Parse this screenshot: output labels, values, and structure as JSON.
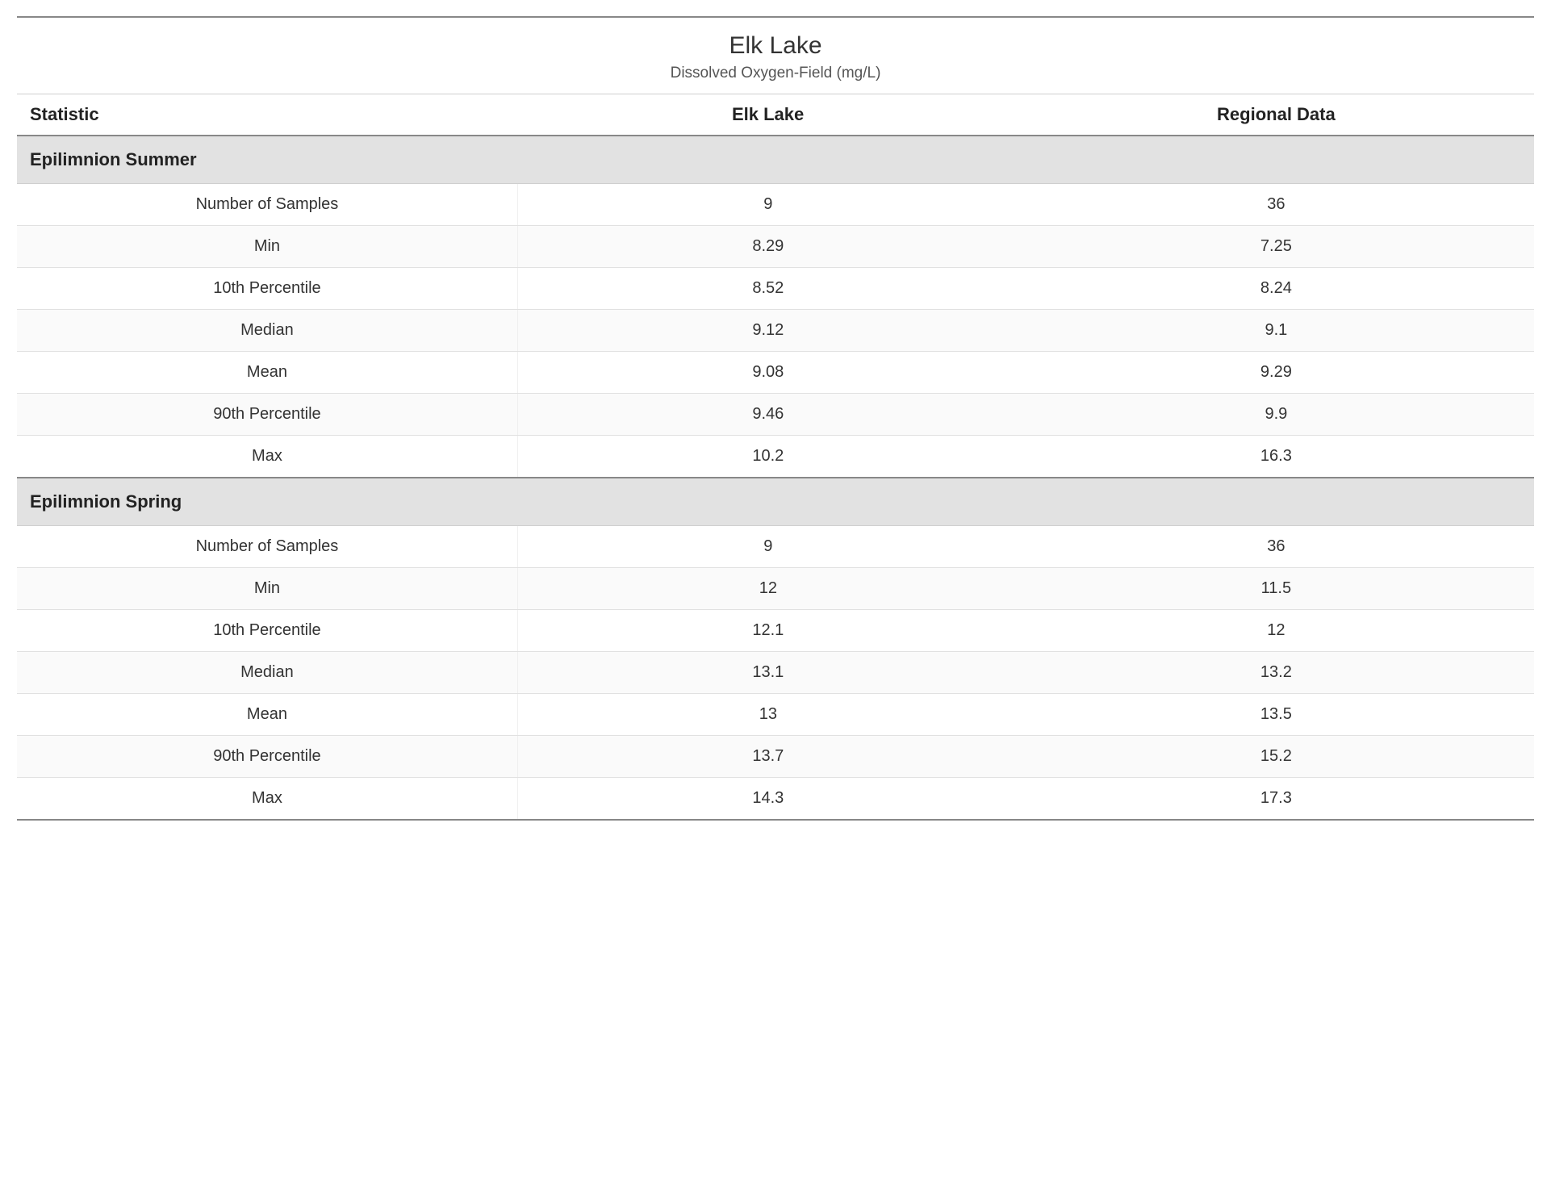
{
  "header": {
    "title": "Elk Lake",
    "subtitle": "Dissolved Oxygen-Field (mg/L)"
  },
  "columns": [
    "Statistic",
    "Elk Lake",
    "Regional Data"
  ],
  "sections": [
    {
      "title": "Epilimnion Summer",
      "rows": [
        {
          "stat": "Number of Samples",
          "lake": "9",
          "region": "36"
        },
        {
          "stat": "Min",
          "lake": "8.29",
          "region": "7.25"
        },
        {
          "stat": "10th Percentile",
          "lake": "8.52",
          "region": "8.24"
        },
        {
          "stat": "Median",
          "lake": "9.12",
          "region": "9.1"
        },
        {
          "stat": "Mean",
          "lake": "9.08",
          "region": "9.29"
        },
        {
          "stat": "90th Percentile",
          "lake": "9.46",
          "region": "9.9"
        },
        {
          "stat": "Max",
          "lake": "10.2",
          "region": "16.3"
        }
      ]
    },
    {
      "title": "Epilimnion Spring",
      "rows": [
        {
          "stat": "Number of Samples",
          "lake": "9",
          "region": "36"
        },
        {
          "stat": "Min",
          "lake": "12",
          "region": "11.5"
        },
        {
          "stat": "10th Percentile",
          "lake": "12.1",
          "region": "12"
        },
        {
          "stat": "Median",
          "lake": "13.1",
          "region": "13.2"
        },
        {
          "stat": "Mean",
          "lake": "13",
          "region": "13.5"
        },
        {
          "stat": "90th Percentile",
          "lake": "13.7",
          "region": "15.2"
        },
        {
          "stat": "Max",
          "lake": "14.3",
          "region": "17.3"
        }
      ]
    }
  ],
  "style": {
    "font_family": "Segoe UI, Arial, sans-serif",
    "title_fontsize": 30,
    "subtitle_fontsize": 19,
    "header_fontsize": 22,
    "section_fontsize": 22,
    "cell_fontsize": 20,
    "text_color": "#222222",
    "muted_text_color": "#555555",
    "section_bg": "#e2e2e2",
    "zebra_bg": "#fafafa",
    "row_border": "#e1e1e1",
    "heavy_rule": "#888888",
    "background": "#ffffff"
  }
}
